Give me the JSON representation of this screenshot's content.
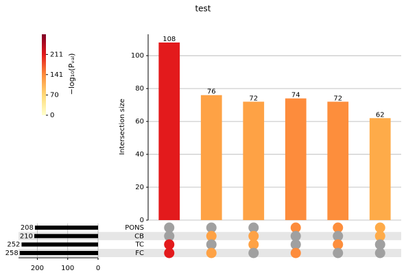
{
  "chart_data": {
    "type": "upset",
    "title": "test",
    "ylabel": "Intersection size",
    "ylim": [
      0,
      113
    ],
    "yticks": [
      0,
      20,
      40,
      60,
      80,
      100
    ],
    "grid": true,
    "intersections": {
      "values": [
        108,
        76,
        72,
        74,
        72,
        62
      ],
      "colors": [
        "#e31a1c",
        "#fea245",
        "#fea245",
        "#fd8c3c",
        "#fd8e3c",
        "#feab49"
      ],
      "membership": [
        [
          0,
          0,
          1,
          1
        ],
        [
          0,
          1,
          0,
          1
        ],
        [
          0,
          1,
          1,
          0
        ],
        [
          1,
          0,
          0,
          1
        ],
        [
          1,
          0,
          1,
          0
        ],
        [
          1,
          1,
          0,
          0
        ]
      ]
    },
    "sets": {
      "names": [
        "PONS",
        "CB",
        "TC",
        "FC"
      ],
      "sizes": [
        208,
        210,
        252,
        258
      ],
      "xlim": [
        0,
        262
      ],
      "xticks": [
        0,
        100,
        200
      ],
      "color": "#000000"
    },
    "nonmember_color": "#a0a0a0",
    "colorbar": {
      "label": "−log₁₀(Pᵥₐₗ)",
      "clim": [
        0,
        281
      ],
      "ticks": [
        0,
        70,
        141,
        211
      ],
      "cmap": "YlOrRd"
    }
  }
}
